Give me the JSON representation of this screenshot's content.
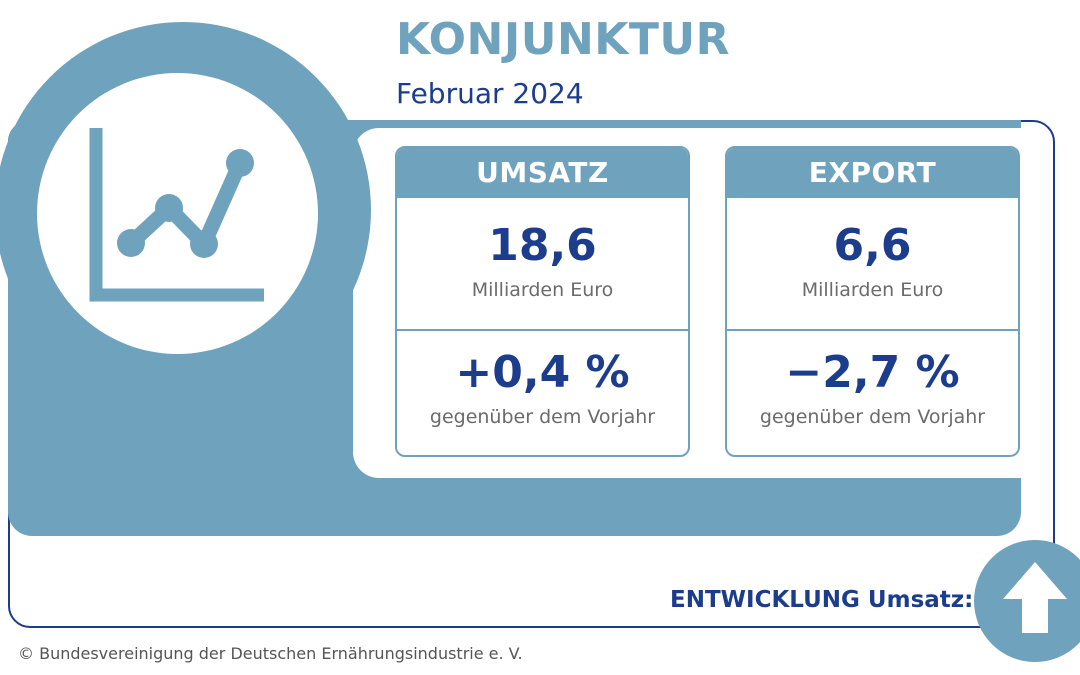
{
  "header": {
    "title": "KONJUNKTUR",
    "subtitle": "Februar 2024"
  },
  "colors": {
    "accent": "#6fa2bc",
    "navy": "#1c3d8c",
    "gray_text": "#6b6b6b"
  },
  "icons": {
    "hero": "line-chart-icon",
    "trend": "arrow-up-icon"
  },
  "cards": [
    {
      "heading": "UMSATZ",
      "value": "18,6",
      "unit": "Milliarden Euro",
      "change": "+0,4 %",
      "change_label": "gegenüber dem Vorjahr"
    },
    {
      "heading": "EXPORT",
      "value": "6,6",
      "unit": "Milliarden Euro",
      "change": "−2,7 %",
      "change_label": "gegenüber dem Vorjahr"
    }
  ],
  "footer": {
    "development_label": "ENTWICKLUNG Umsatz:",
    "development_direction": "up",
    "copyright": "© Bundesvereinigung der Deutschen Ernährungsindustrie e. V."
  }
}
